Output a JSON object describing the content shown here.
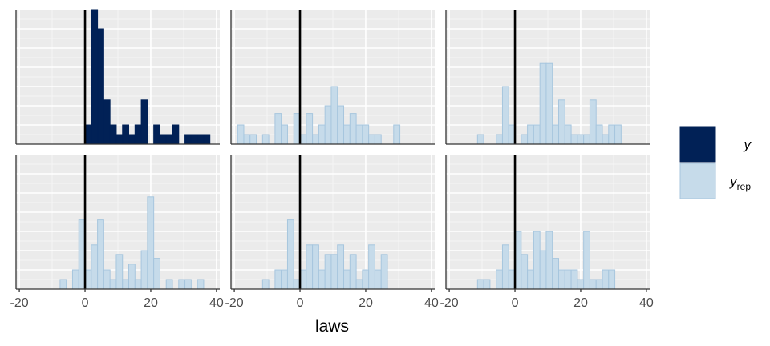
{
  "chart_data": {
    "type": "histogram",
    "layout": {
      "rows": 2,
      "cols": 3
    },
    "xlabel": "laws",
    "x_ticks": [
      -20,
      0,
      20,
      40
    ],
    "xlim": [
      -21,
      41
    ],
    "ylim": [
      0,
      7
    ],
    "bin_width": 1.9,
    "reference_line_x": 0,
    "grid": true,
    "legend": {
      "position": "right",
      "entries": [
        {
          "key": "y",
          "label": "y",
          "subscript": "",
          "fill": "#012156",
          "stroke": "#012156"
        },
        {
          "key": "yrep",
          "label": "y",
          "subscript": "rep",
          "fill": "#c6dbea",
          "stroke": "#a7c6de"
        }
      ]
    },
    "panels": [
      {
        "series": "y",
        "bins": [
          [
            0.0,
            1.0
          ],
          [
            1.9,
            7.0
          ],
          [
            3.8,
            6.0
          ],
          [
            5.7,
            2.3
          ],
          [
            7.6,
            1.0
          ],
          [
            9.5,
            0.5
          ],
          [
            11.4,
            1.0
          ],
          [
            13.3,
            0.5
          ],
          [
            15.2,
            1.0
          ],
          [
            17.1,
            2.3
          ],
          [
            20.9,
            1.0
          ],
          [
            22.8,
            0.5
          ],
          [
            24.7,
            0.5
          ],
          [
            26.6,
            1.0
          ],
          [
            30.4,
            0.5
          ],
          [
            32.3,
            0.5
          ],
          [
            34.2,
            0.5
          ],
          [
            36.1,
            0.5
          ]
        ]
      },
      {
        "series": "yrep",
        "bins": [
          [
            -19.0,
            1.0
          ],
          [
            -17.1,
            0.5
          ],
          [
            -15.2,
            0.5
          ],
          [
            -11.4,
            0.5
          ],
          [
            -7.6,
            1.6
          ],
          [
            -5.7,
            1.0
          ],
          [
            -1.9,
            1.6
          ],
          [
            0.0,
            0.5
          ],
          [
            1.9,
            1.6
          ],
          [
            3.8,
            0.5
          ],
          [
            5.7,
            1.0
          ],
          [
            7.6,
            2.0
          ],
          [
            9.5,
            3.0
          ],
          [
            11.4,
            2.0
          ],
          [
            13.3,
            1.0
          ],
          [
            15.2,
            1.6
          ],
          [
            17.1,
            1.0
          ],
          [
            19.0,
            1.0
          ],
          [
            20.9,
            0.5
          ],
          [
            22.8,
            0.5
          ],
          [
            28.5,
            1.0
          ]
        ]
      },
      {
        "series": "yrep",
        "bins": [
          [
            -11.4,
            0.5
          ],
          [
            -5.7,
            0.5
          ],
          [
            -3.8,
            3.0
          ],
          [
            -1.9,
            1.0
          ],
          [
            1.9,
            0.5
          ],
          [
            3.8,
            1.0
          ],
          [
            5.7,
            1.0
          ],
          [
            7.6,
            4.2
          ],
          [
            9.5,
            4.2
          ],
          [
            11.4,
            1.0
          ],
          [
            13.3,
            2.3
          ],
          [
            15.2,
            1.0
          ],
          [
            17.1,
            0.5
          ],
          [
            19.0,
            0.5
          ],
          [
            20.9,
            0.5
          ],
          [
            22.8,
            2.3
          ],
          [
            24.7,
            1.0
          ],
          [
            26.6,
            0.5
          ],
          [
            28.5,
            1.0
          ],
          [
            30.4,
            1.0
          ]
        ]
      },
      {
        "series": "yrep",
        "bins": [
          [
            -7.6,
            0.5
          ],
          [
            -3.8,
            1.0
          ],
          [
            -1.9,
            3.6
          ],
          [
            0.0,
            1.0
          ],
          [
            1.9,
            2.3
          ],
          [
            3.8,
            3.6
          ],
          [
            5.7,
            1.0
          ],
          [
            7.6,
            0.5
          ],
          [
            9.5,
            1.8
          ],
          [
            11.4,
            0.5
          ],
          [
            13.3,
            1.3
          ],
          [
            15.2,
            0.5
          ],
          [
            17.1,
            2.0
          ],
          [
            19.0,
            4.8
          ],
          [
            20.9,
            1.6
          ],
          [
            24.7,
            0.5
          ],
          [
            28.5,
            0.5
          ],
          [
            30.4,
            0.5
          ],
          [
            34.2,
            0.5
          ]
        ]
      },
      {
        "series": "yrep",
        "bins": [
          [
            -11.4,
            0.5
          ],
          [
            -7.6,
            1.0
          ],
          [
            -5.7,
            1.0
          ],
          [
            -3.8,
            3.6
          ],
          [
            -1.9,
            0.5
          ],
          [
            0.0,
            1.0
          ],
          [
            1.9,
            2.3
          ],
          [
            3.8,
            2.3
          ],
          [
            5.7,
            1.0
          ],
          [
            7.6,
            1.8
          ],
          [
            9.5,
            1.8
          ],
          [
            11.4,
            2.3
          ],
          [
            13.3,
            1.0
          ],
          [
            15.2,
            1.8
          ],
          [
            17.1,
            0.5
          ],
          [
            19.0,
            1.0
          ],
          [
            20.9,
            2.3
          ],
          [
            22.8,
            1.0
          ],
          [
            24.7,
            1.8
          ]
        ]
      },
      {
        "series": "yrep",
        "bins": [
          [
            -11.4,
            0.5
          ],
          [
            -9.5,
            0.5
          ],
          [
            -5.7,
            1.0
          ],
          [
            -3.8,
            2.3
          ],
          [
            -1.9,
            1.0
          ],
          [
            0.0,
            3.0
          ],
          [
            1.9,
            1.8
          ],
          [
            3.8,
            1.0
          ],
          [
            5.7,
            3.0
          ],
          [
            7.6,
            2.0
          ],
          [
            9.5,
            3.0
          ],
          [
            11.4,
            1.6
          ],
          [
            13.3,
            1.0
          ],
          [
            15.2,
            1.0
          ],
          [
            17.1,
            1.0
          ],
          [
            19.0,
            0.5
          ],
          [
            20.9,
            3.0
          ],
          [
            22.8,
            0.5
          ],
          [
            24.7,
            0.5
          ],
          [
            26.6,
            1.0
          ],
          [
            28.5,
            1.0
          ]
        ]
      }
    ]
  }
}
